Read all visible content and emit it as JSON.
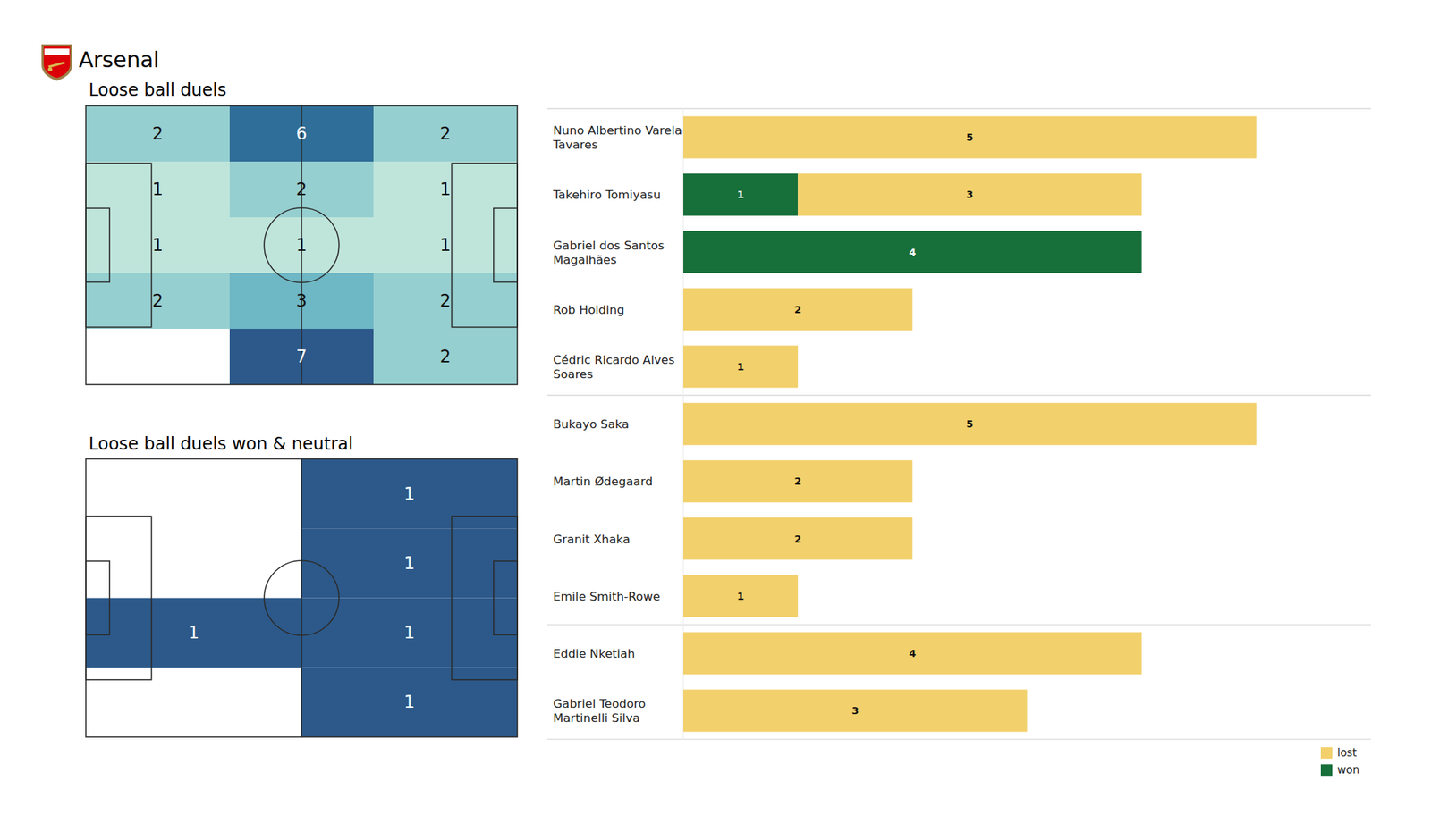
{
  "title": "Arsenal",
  "chart_data": [
    {
      "type": "heatmap",
      "title": "Loose ball duels",
      "cells": [
        [
          2,
          6,
          2
        ],
        [
          1,
          2,
          1
        ],
        [
          1,
          1,
          1
        ],
        [
          2,
          3,
          2
        ],
        [
          null,
          7,
          2
        ]
      ],
      "data_labels": true
    },
    {
      "type": "heatmap",
      "title": "Loose ball duels won & neutral",
      "cells": [
        [
          null,
          1
        ],
        [
          null,
          1
        ],
        [
          1,
          1
        ],
        [
          null,
          1
        ]
      ],
      "data_labels": true
    },
    {
      "type": "bar",
      "orientation": "horizontal",
      "stacked": true,
      "data_labels": true,
      "tick_labels": false,
      "legend": "lower right",
      "categories": [
        "Nuno Albertino Varela Tavares",
        "Takehiro Tomiyasu",
        "Gabriel dos Santos Magalhães",
        "Rob Holding",
        "Cédric Ricardo Alves Soares",
        "Bukayo Saka",
        "Martin Ødegaard",
        "Granit Xhaka",
        "Emile Smith-Rowe",
        "Eddie Nketiah",
        "Gabriel Teodoro Martinelli Silva"
      ],
      "series": [
        {
          "name": "won",
          "color": "#176f3a",
          "values": [
            0,
            1,
            4,
            0,
            0,
            0,
            0,
            0,
            0,
            0,
            0
          ]
        },
        {
          "name": "lost",
          "color": "#f2d06b",
          "values": [
            5,
            3,
            0,
            2,
            1,
            5,
            2,
            2,
            1,
            4,
            3
          ]
        }
      ],
      "xlim": [
        0,
        6
      ]
    }
  ]
}
